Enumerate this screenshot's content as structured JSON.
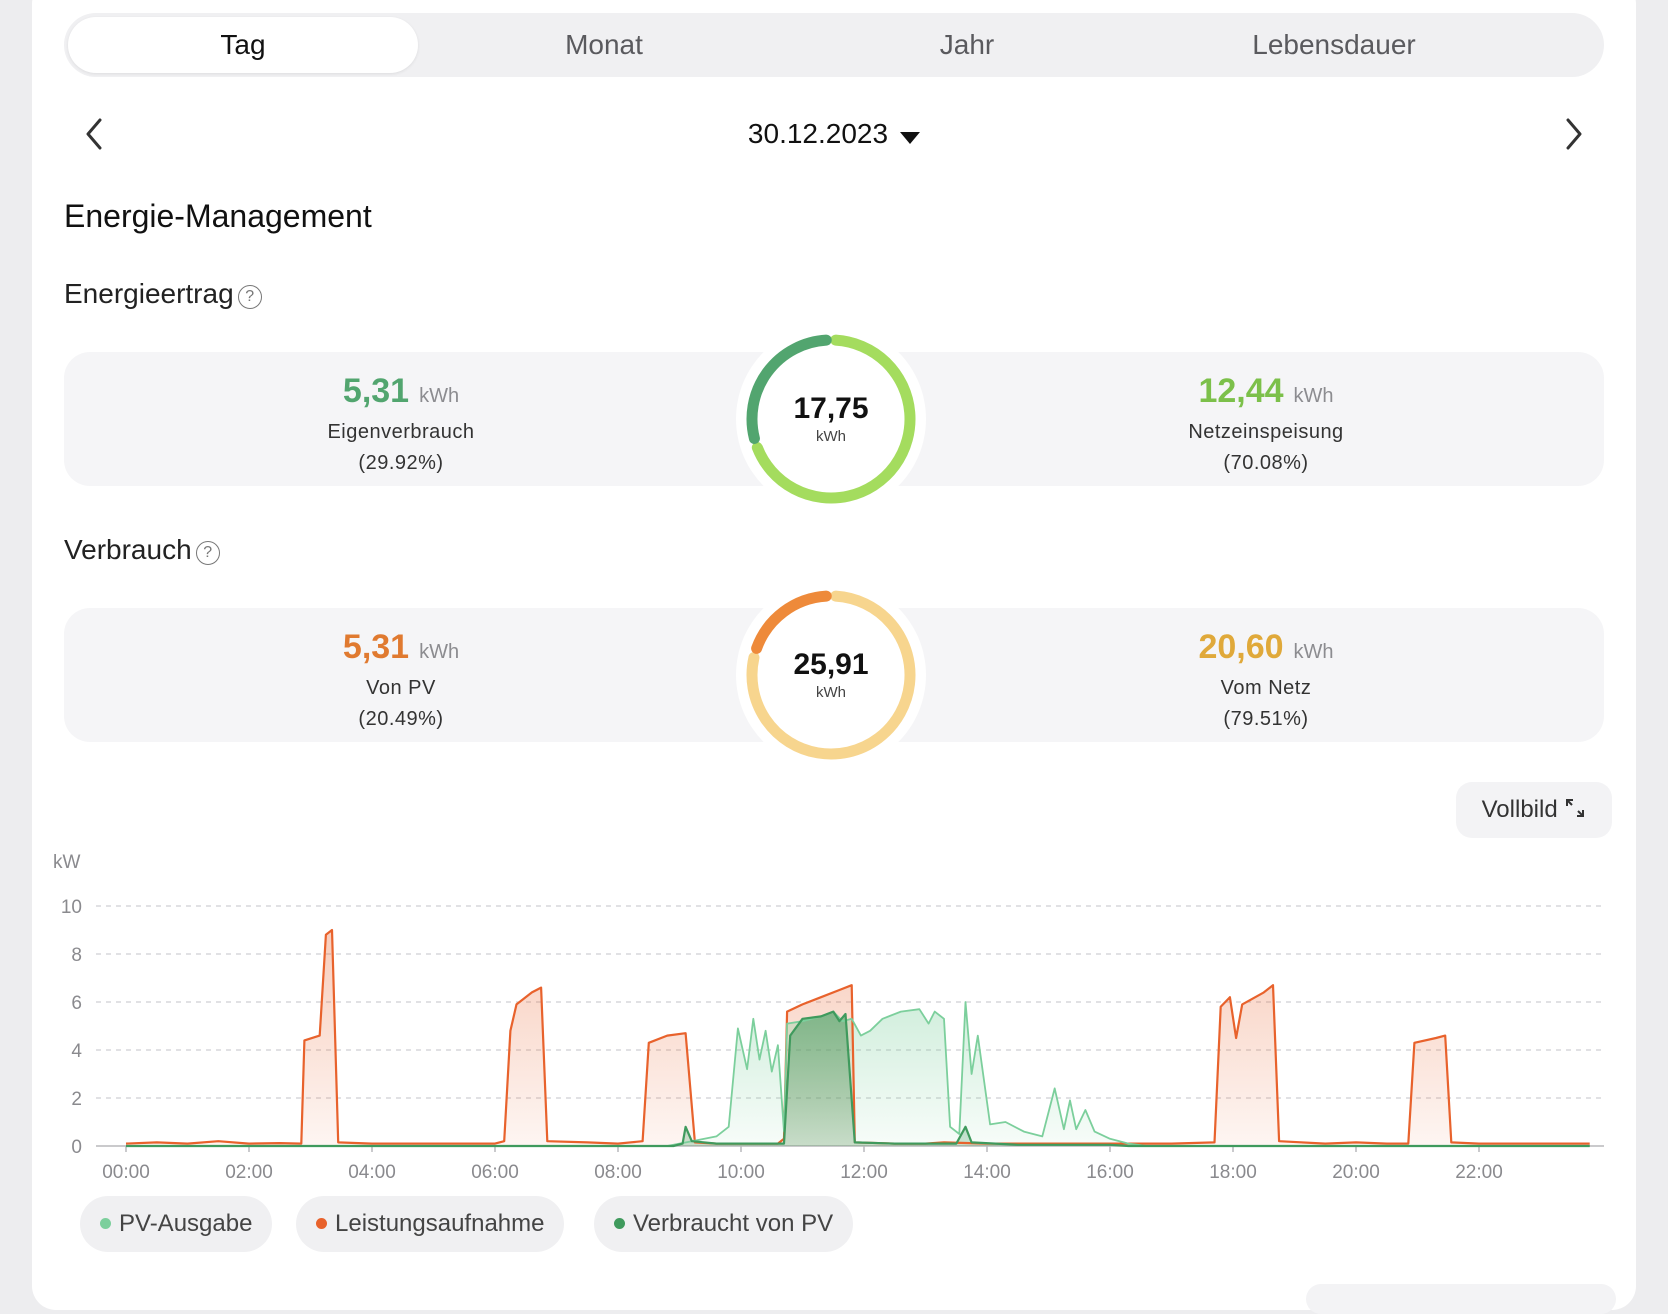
{
  "tabs": [
    {
      "label": "Tag",
      "active": true
    },
    {
      "label": "Monat",
      "active": false
    },
    {
      "label": "Jahr",
      "active": false
    },
    {
      "label": "Lebensdauer",
      "active": false
    }
  ],
  "date": "30.12.2023",
  "title": "Energie-Management",
  "yield": {
    "heading": "Energieertrag",
    "total": "17,75",
    "total_unit": "kWh",
    "left": {
      "value": "5,31",
      "unit": "kWh",
      "label": "Eigenverbrauch",
      "percent": "(29.92%)",
      "fraction": 0.2992
    },
    "right": {
      "value": "12,44",
      "unit": "kWh",
      "label": "Netzeinspeisung",
      "percent": "(70.08%)"
    },
    "colors": {
      "primary": "#52a56f",
      "secondary": "#a4dc5e"
    }
  },
  "consumption": {
    "heading": "Verbrauch",
    "total": "25,91",
    "total_unit": "kWh",
    "left": {
      "value": "5,31",
      "unit": "kWh",
      "label": "Von PV",
      "percent": "(20.49%)",
      "fraction": 0.2049
    },
    "right": {
      "value": "20,60",
      "unit": "kWh",
      "label": "Vom Netz",
      "percent": "(79.51%)"
    },
    "colors": {
      "primary": "#ee8a3a",
      "secondary": "#f7d58e",
      "left_text": "#e07a30",
      "right_text": "#e0a93a"
    }
  },
  "fullscreen_label": "Vollbild",
  "legend": [
    {
      "label": "PV-Ausgabe",
      "color": "#7ccf9c"
    },
    {
      "label": "Leistungsaufnahme",
      "color": "#e8622c"
    },
    {
      "label": "Verbraucht von PV",
      "color": "#3f9a5d"
    }
  ],
  "chart_data": {
    "type": "area",
    "ylabel": "kW",
    "ylim": [
      0,
      10
    ],
    "yticks": [
      0,
      2,
      4,
      6,
      8,
      10
    ],
    "xlim": [
      0,
      24
    ],
    "xticks": [
      "00:00",
      "02:00",
      "04:00",
      "06:00",
      "08:00",
      "10:00",
      "12:00",
      "14:00",
      "16:00",
      "18:00",
      "20:00",
      "22:00"
    ],
    "grid": true,
    "series": [
      {
        "name": "Leistungsaufnahme",
        "color": "#e8622c",
        "points": [
          [
            0,
            0.1
          ],
          [
            0.5,
            0.15
          ],
          [
            1,
            0.1
          ],
          [
            1.5,
            0.2
          ],
          [
            2,
            0.1
          ],
          [
            2.5,
            0.12
          ],
          [
            2.85,
            0.1
          ],
          [
            2.9,
            4.4
          ],
          [
            3.15,
            4.6
          ],
          [
            3.25,
            8.8
          ],
          [
            3.35,
            9.0
          ],
          [
            3.45,
            0.15
          ],
          [
            4,
            0.1
          ],
          [
            5,
            0.1
          ],
          [
            6,
            0.1
          ],
          [
            6.15,
            0.2
          ],
          [
            6.25,
            4.8
          ],
          [
            6.35,
            5.9
          ],
          [
            6.6,
            6.4
          ],
          [
            6.75,
            6.6
          ],
          [
            6.85,
            0.2
          ],
          [
            7.5,
            0.15
          ],
          [
            8,
            0.1
          ],
          [
            8.4,
            0.2
          ],
          [
            8.5,
            4.3
          ],
          [
            8.8,
            4.6
          ],
          [
            9.1,
            4.7
          ],
          [
            9.25,
            0.15
          ],
          [
            9.6,
            0.1
          ],
          [
            10,
            0.1
          ],
          [
            10.6,
            0.1
          ],
          [
            10.7,
            0.3
          ],
          [
            10.75,
            5.6
          ],
          [
            11,
            5.9
          ],
          [
            11.3,
            6.2
          ],
          [
            11.6,
            6.5
          ],
          [
            11.8,
            6.7
          ],
          [
            11.85,
            0.15
          ],
          [
            12.5,
            0.1
          ],
          [
            13,
            0.1
          ],
          [
            13.3,
            0.15
          ],
          [
            14,
            0.1
          ],
          [
            15,
            0.1
          ],
          [
            16,
            0.1
          ],
          [
            17,
            0.1
          ],
          [
            17.7,
            0.15
          ],
          [
            17.8,
            5.8
          ],
          [
            17.95,
            6.2
          ],
          [
            18.05,
            4.5
          ],
          [
            18.15,
            5.9
          ],
          [
            18.5,
            6.4
          ],
          [
            18.65,
            6.7
          ],
          [
            18.75,
            0.2
          ],
          [
            19.5,
            0.1
          ],
          [
            20,
            0.15
          ],
          [
            20.5,
            0.1
          ],
          [
            20.85,
            0.1
          ],
          [
            20.95,
            4.3
          ],
          [
            21.3,
            4.5
          ],
          [
            21.45,
            4.6
          ],
          [
            21.55,
            0.15
          ],
          [
            22,
            0.1
          ],
          [
            23,
            0.1
          ],
          [
            23.8,
            0.1
          ]
        ]
      },
      {
        "name": "PV-Ausgabe",
        "color": "#7ccf9c",
        "points": [
          [
            0,
            0
          ],
          [
            8.8,
            0
          ],
          [
            9.2,
            0.2
          ],
          [
            9.6,
            0.4
          ],
          [
            9.8,
            0.8
          ],
          [
            9.95,
            4.9
          ],
          [
            10.1,
            3.2
          ],
          [
            10.2,
            5.3
          ],
          [
            10.3,
            3.6
          ],
          [
            10.4,
            4.8
          ],
          [
            10.5,
            3.1
          ],
          [
            10.6,
            4.2
          ],
          [
            10.7,
            0.6
          ],
          [
            10.75,
            5.1
          ],
          [
            11,
            5.2
          ],
          [
            11.3,
            5.4
          ],
          [
            11.5,
            5.6
          ],
          [
            11.65,
            5.2
          ],
          [
            11.8,
            5.3
          ],
          [
            11.95,
            4.6
          ],
          [
            12.1,
            4.8
          ],
          [
            12.3,
            5.3
          ],
          [
            12.6,
            5.6
          ],
          [
            12.9,
            5.7
          ],
          [
            13.05,
            5.1
          ],
          [
            13.15,
            5.6
          ],
          [
            13.3,
            5.3
          ],
          [
            13.4,
            0.8
          ],
          [
            13.55,
            0.5
          ],
          [
            13.65,
            6.0
          ],
          [
            13.75,
            3.0
          ],
          [
            13.85,
            4.6
          ],
          [
            14.05,
            0.9
          ],
          [
            14.3,
            1.0
          ],
          [
            14.6,
            0.6
          ],
          [
            14.9,
            0.4
          ],
          [
            15.1,
            2.4
          ],
          [
            15.25,
            0.7
          ],
          [
            15.35,
            1.9
          ],
          [
            15.45,
            0.7
          ],
          [
            15.6,
            1.5
          ],
          [
            15.75,
            0.6
          ],
          [
            16,
            0.3
          ],
          [
            16.3,
            0.1
          ],
          [
            16.6,
            0
          ],
          [
            23.8,
            0
          ]
        ]
      },
      {
        "name": "Verbraucht von PV",
        "color": "#3f9a5d",
        "points": [
          [
            0,
            0
          ],
          [
            8.9,
            0
          ],
          [
            9.05,
            0.1
          ],
          [
            9.1,
            0.8
          ],
          [
            9.2,
            0.2
          ],
          [
            9.6,
            0.1
          ],
          [
            10.7,
            0.1
          ],
          [
            10.8,
            4.6
          ],
          [
            11,
            5.3
          ],
          [
            11.3,
            5.4
          ],
          [
            11.5,
            5.6
          ],
          [
            11.6,
            5.2
          ],
          [
            11.7,
            5.5
          ],
          [
            11.85,
            0.15
          ],
          [
            12.5,
            0.1
          ],
          [
            13.5,
            0.1
          ],
          [
            13.65,
            0.8
          ],
          [
            13.75,
            0.15
          ],
          [
            14.5,
            0.05
          ],
          [
            16,
            0.05
          ],
          [
            16.3,
            0
          ],
          [
            23.8,
            0
          ]
        ]
      }
    ]
  }
}
